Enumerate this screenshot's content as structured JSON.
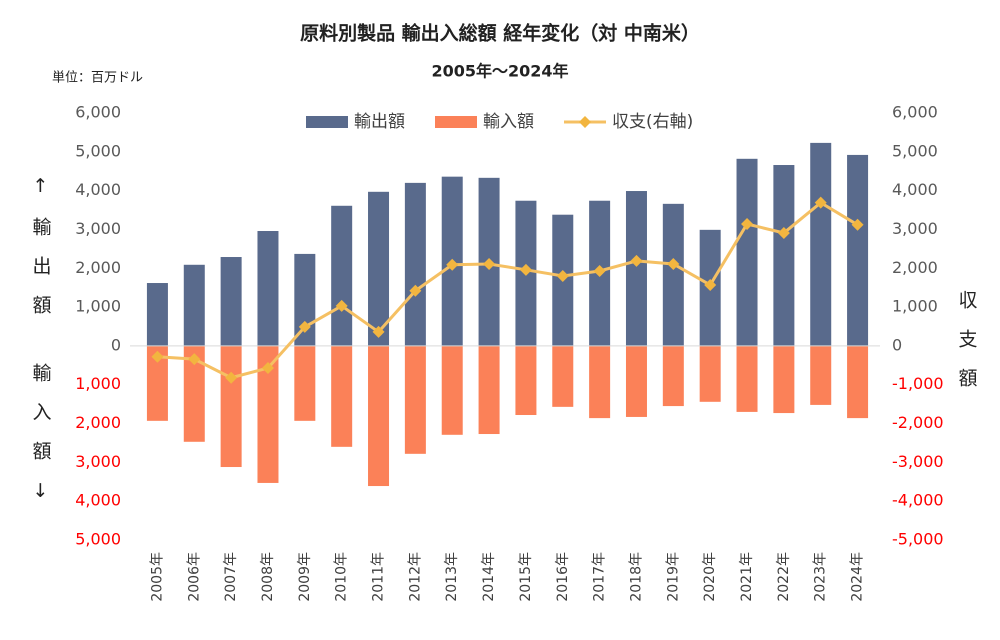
{
  "chart_data": {
    "type": "bar",
    "title": "原料別製品 輸出入総額 経年変化（対 中南米）",
    "subtitle": "2005年～2024年",
    "unit_label": "単位：百万ドル",
    "y_label_top": "↑輸出額",
    "y_label_bottom": "輸入額↓",
    "y2_label": "収支額",
    "categories": [
      "2005年",
      "2006年",
      "2007年",
      "2008年",
      "2009年",
      "2010年",
      "2011年",
      "2012年",
      "2013年",
      "2014年",
      "2015年",
      "2016年",
      "2017年",
      "2018年",
      "2019年",
      "2020年",
      "2021年",
      "2022年",
      "2023年",
      "2024年"
    ],
    "series": [
      {
        "name": "輸出額",
        "color": "#596a8c",
        "type": "bar",
        "values": [
          1620,
          2090,
          2290,
          2960,
          2370,
          3610,
          3970,
          4200,
          4360,
          4330,
          3740,
          3380,
          3740,
          3990,
          3660,
          2990,
          4820,
          4660,
          5230,
          4920
        ]
      },
      {
        "name": "輸入額",
        "color": "#fb8158",
        "type": "bar",
        "values": [
          -1930,
          -2470,
          -3120,
          -3530,
          -1930,
          -2600,
          -3610,
          -2780,
          -2290,
          -2270,
          -1780,
          -1570,
          -1860,
          -1830,
          -1550,
          -1440,
          -1700,
          -1730,
          -1520,
          -1860
        ]
      },
      {
        "name": "収支(右軸)",
        "color": "#f5c063",
        "type": "line",
        "axis": "y2",
        "values": [
          -280,
          -340,
          -820,
          -570,
          490,
          1030,
          360,
          1420,
          2090,
          2110,
          1960,
          1800,
          1930,
          2190,
          2110,
          1570,
          3140,
          2910,
          3690,
          3120
        ]
      }
    ],
    "ylim": [
      -5000,
      6000
    ],
    "yticks": [
      {
        "value": 6000,
        "label": "6,000"
      },
      {
        "value": 5000,
        "label": "5,000"
      },
      {
        "value": 4000,
        "label": "4,000"
      },
      {
        "value": 3000,
        "label": "3,000"
      },
      {
        "value": 2000,
        "label": "2,000"
      },
      {
        "value": 1000,
        "label": "1,000"
      },
      0,
      {
        "value": -1000,
        "label": "1,000"
      },
      {
        "value": -2000,
        "label": "2,000"
      },
      {
        "value": -3000,
        "label": "3,000"
      },
      {
        "value": -4000,
        "label": "4,000"
      },
      {
        "value": -5000,
        "label": "5,000"
      }
    ],
    "y2lim": [
      -5000,
      6000
    ],
    "y2ticks": [
      {
        "value": 6000,
        "label": "6,000"
      },
      {
        "value": 5000,
        "label": "5,000"
      },
      {
        "value": 4000,
        "label": "4,000"
      },
      {
        "value": 3000,
        "label": "3,000"
      },
      {
        "value": 2000,
        "label": "2,000"
      },
      {
        "value": 1000,
        "label": "1,000"
      },
      0,
      {
        "value": -1000,
        "label": "-1,000"
      },
      {
        "value": -2000,
        "label": "-2,000"
      },
      {
        "value": -3000,
        "label": "-3,000"
      },
      {
        "value": -4000,
        "label": "-4,000"
      },
      {
        "value": -5000,
        "label": "-5,000"
      }
    ],
    "tick_color": "#595959",
    "negative_tick_color": "#ff0000",
    "legend": "top",
    "grid": false
  }
}
